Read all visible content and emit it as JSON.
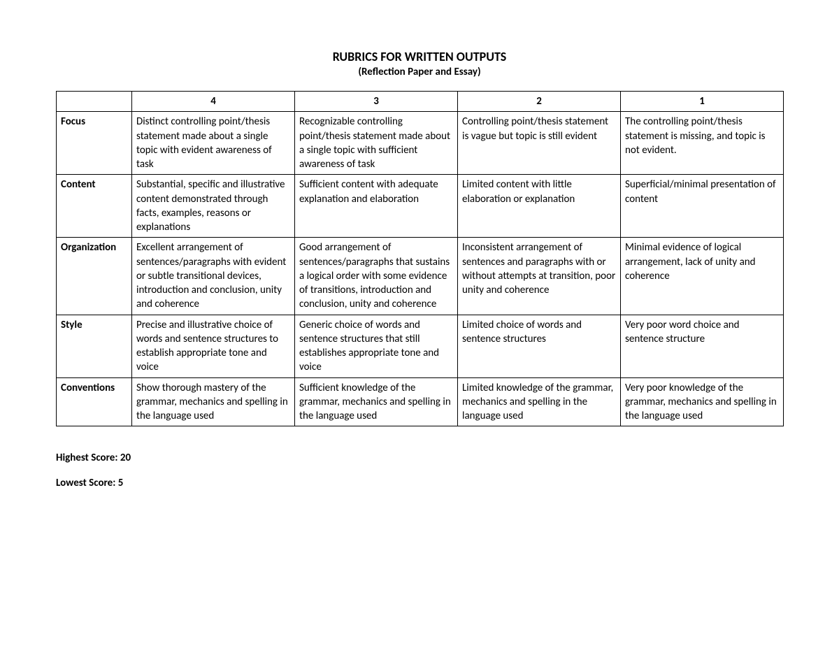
{
  "title": "RUBRICS FOR WRITTEN OUTPUTS",
  "subtitle": "(Reflection Paper and Essay)",
  "headers": {
    "blank": "",
    "c4": "4",
    "c3": "3",
    "c2": "2",
    "c1": "1"
  },
  "rows": [
    {
      "criterion": "Focus",
      "l4": "Distinct controlling point/thesis statement made about a single topic with evident awareness of task",
      "l3": "Recognizable controlling point/thesis statement made about a single topic with sufficient awareness of task",
      "l2": "Controlling point/thesis statement is vague but topic is still evident",
      "l1": "The controlling point/thesis statement is missing, and topic is not evident."
    },
    {
      "criterion": "Content",
      "l4": "Substantial, specific and illustrative content demonstrated through facts, examples, reasons or explanations",
      "l3": "Sufficient content with adequate explanation and elaboration",
      "l2": "Limited content with little elaboration or explanation",
      "l1": "Superficial/minimal presentation of content"
    },
    {
      "criterion": "Organization",
      "l4": "Excellent arrangement of sentences/paragraphs with evident or subtle transitional devices, introduction and conclusion, unity and coherence",
      "l3": "Good arrangement of sentences/paragraphs that sustains a logical order with some evidence of transitions, introduction and conclusion, unity and coherence",
      "l2": "Inconsistent arrangement of sentences and paragraphs with or without attempts at transition, poor unity and coherence",
      "l1": "Minimal evidence of logical arrangement, lack of unity and coherence"
    },
    {
      "criterion": "Style",
      "l4": "Precise and illustrative choice of words and sentence structures to establish appropriate tone and voice",
      "l3": "Generic choice of words and sentence structures that still establishes appropriate tone and voice",
      "l2": "Limited choice of words and sentence structures",
      "l1": "Very poor word choice and sentence structure"
    },
    {
      "criterion": "Conventions",
      "l4": "Show thorough mastery of the grammar, mechanics and spelling in the language used",
      "l3": "Sufficient knowledge of the grammar, mechanics and spelling in the language used",
      "l2": "Limited knowledge of the grammar, mechanics and spelling in the language used",
      "l1": "Very poor knowledge of the grammar, mechanics and spelling in the language used"
    }
  ],
  "highest_score_label": "Highest Score: 20",
  "lowest_score_label": "Lowest Score: 5"
}
